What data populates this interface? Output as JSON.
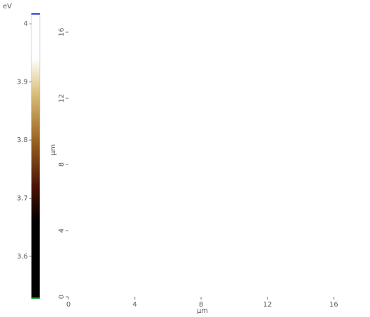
{
  "chart_data": {
    "type": "heatmap",
    "xlabel": "µm",
    "ylabel": "µm",
    "xlim": [
      0,
      16.5
    ],
    "ylim": [
      0,
      17.1
    ],
    "xticks": [
      0,
      4,
      8,
      12,
      16
    ],
    "yticks": [
      0,
      4,
      8,
      12,
      16
    ],
    "colorbar": {
      "label": "eV",
      "lim": [
        3.528,
        4.017
      ],
      "ticks": [
        3.6,
        3.7,
        3.8,
        3.9,
        4
      ],
      "colormap": [
        {
          "value": 3.528,
          "color": "#000000"
        },
        {
          "value": 3.66,
          "color": "#000000"
        },
        {
          "value": 3.72,
          "color": "#4a1208"
        },
        {
          "value": 3.8,
          "color": "#9a6420"
        },
        {
          "value": 3.88,
          "color": "#d9bf7a"
        },
        {
          "value": 3.94,
          "color": "#ffffff"
        },
        {
          "value": 4.017,
          "color": "#ffffff"
        }
      ]
    }
  }
}
